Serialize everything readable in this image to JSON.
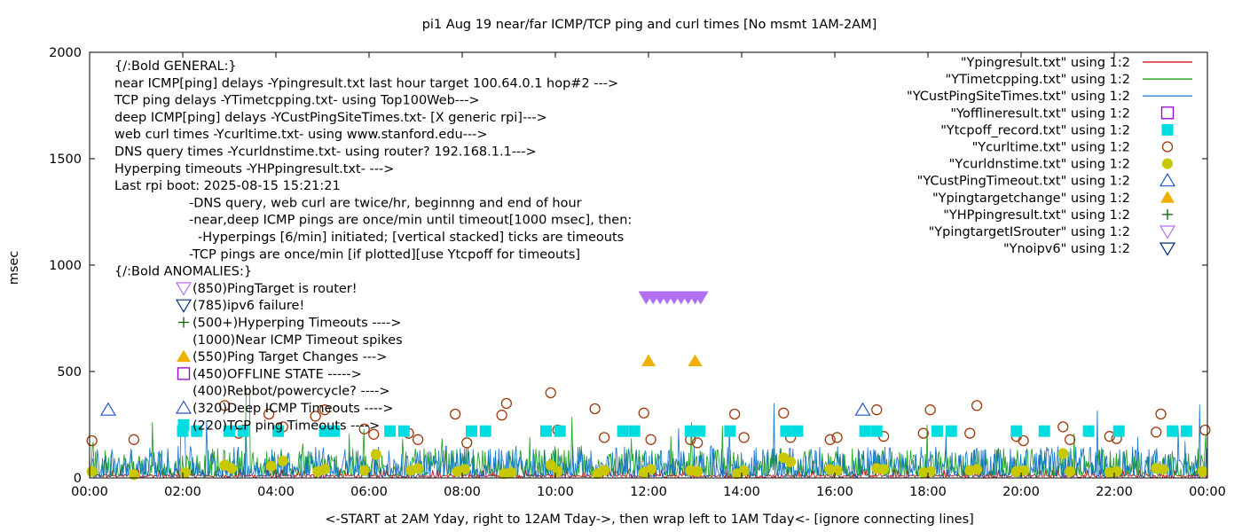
{
  "chart_data": {
    "type": "scatter",
    "title": "pi1 Aug 19  near/far ICMP/TCP ping and curl times [No msmt 1AM-2AM]",
    "xlabel": "<-START at 2AM Yday, right to 12AM Tday->, then wrap left to 1AM Tday<- [ignore connecting lines]",
    "ylabel": "msec",
    "xlim": [
      0,
      24
    ],
    "ylim": [
      0,
      2000
    ],
    "x_ticks": [
      "00:00",
      "02:00",
      "04:00",
      "06:00",
      "08:00",
      "10:00",
      "12:00",
      "14:00",
      "16:00",
      "18:00",
      "20:00",
      "22:00",
      "00:00"
    ],
    "y_ticks": [
      "0",
      "500",
      "1000",
      "1500",
      "2000"
    ],
    "grid": false,
    "legend_position": "top-right",
    "legend": [
      {
        "label": "\"Ypingresult.txt\" using 1:2",
        "marker": "line",
        "color": "#cc0000"
      },
      {
        "label": "\"YTimetcpping.txt\" using 1:2",
        "marker": "line",
        "color": "#009900"
      },
      {
        "label": "\"YCustPingSiteTimes.txt\" using 1:2",
        "marker": "line",
        "color": "#0066cc"
      },
      {
        "label": "\"Yofflineresult.txt\" using 1:2",
        "marker": "open-square",
        "color": "#9400d3"
      },
      {
        "label": "\"Ytcpoff_record.txt\" using 1:2",
        "marker": "filled-square",
        "color": "#00dde0"
      },
      {
        "label": "\"Ycurltime.txt\" using 1:2",
        "marker": "open-circle",
        "color": "#a0380a"
      },
      {
        "label": "\"Ycurldnstime.txt\" using 1:2",
        "marker": "filled-circle",
        "color": "#c8c800"
      },
      {
        "label": "\"YCustPingTimeout.txt\" using 1:2",
        "marker": "open-triangle-up",
        "color": "#2255cc"
      },
      {
        "label": "\"Ypingtargetchange\" using 1:2",
        "marker": "filled-triangle-up",
        "color": "#f0b000"
      },
      {
        "label": "\"YHPpingresult.txt\" using 1:2",
        "marker": "plus",
        "color": "#006400"
      },
      {
        "label": "\"YpingtargetISrouter\" using 1:2",
        "marker": "open-triangle-down",
        "color": "#b070f0"
      },
      {
        "label": "\"Ynoipv6\" using 1:2",
        "marker": "open-triangle-down",
        "color": "#003080"
      }
    ],
    "annotations": [
      "{/:Bold GENERAL:}",
      "near ICMP[ping] delays -Ypingresult.txt last hour target 100.64.0.1 hop#2 --->",
      "TCP ping delays -YTimetcpping.txt- using Top100Web--->",
      "deep ICMP[ping] delays -YCustPingSiteTimes.txt- [X generic rpi]--->",
      "web curl times -Ycurltime.txt- using www.stanford.edu--->",
      "DNS query times -Ycurldnstime.txt- using router? 192.168.1.1--->",
      "Hyperping timeouts -YHPpingresult.txt- --->",
      "Last rpi boot: 2025-08-15 15:21:21",
      "-DNS query, web curl are twice/hr, beginnng and end of hour",
      "-near,deep ICMP pings are once/min until timeout[1000 msec], then:",
      "-Hyperpings [6/min] initiated; [vertical stacked] ticks are timeouts",
      "-TCP pings are once/min [if plotted][use Ytcpoff for timeouts]",
      "{/:Bold ANOMALIES:}",
      "(850)PingTarget is router!",
      "(785)ipv6 failure!",
      "(500+)Hyperping Timeouts ---->",
      "(1000)Near ICMP Timeout spikes",
      "(550)Ping Target Changes --->",
      "(450)OFFLINE STATE ----->",
      "(400)Rebbot/powercycle? ---->",
      "(320)Deep ICMP Timeouts ---->",
      "(220)TCP ping Timeouts ---->"
    ],
    "series": [
      {
        "name": "\"Ycurltime.txt\" using 1:2",
        "marker": "open-circle",
        "points": [
          [
            0.05,
            175
          ],
          [
            0.95,
            180
          ],
          [
            2.9,
            340
          ],
          [
            3.2,
            210
          ],
          [
            3.3,
            225
          ],
          [
            3.85,
            300
          ],
          [
            4.15,
            240
          ],
          [
            4.85,
            290
          ],
          [
            5.05,
            320
          ],
          [
            5.9,
            230
          ],
          [
            6.1,
            205
          ],
          [
            6.85,
            210
          ],
          [
            7.05,
            180
          ],
          [
            7.85,
            300
          ],
          [
            8.1,
            165
          ],
          [
            8.85,
            295
          ],
          [
            8.95,
            350
          ],
          [
            9.9,
            400
          ],
          [
            10.05,
            225
          ],
          [
            10.85,
            325
          ],
          [
            11.05,
            190
          ],
          [
            11.9,
            305
          ],
          [
            12.05,
            180
          ],
          [
            12.9,
            180
          ],
          [
            13.05,
            165
          ],
          [
            13.85,
            300
          ],
          [
            14.05,
            190
          ],
          [
            14.9,
            305
          ],
          [
            15.05,
            190
          ],
          [
            15.9,
            180
          ],
          [
            16.05,
            190
          ],
          [
            16.9,
            320
          ],
          [
            17.05,
            195
          ],
          [
            17.9,
            210
          ],
          [
            18.05,
            320
          ],
          [
            18.9,
            210
          ],
          [
            19.05,
            340
          ],
          [
            19.9,
            195
          ],
          [
            20.05,
            175
          ],
          [
            20.9,
            240
          ],
          [
            21.05,
            180
          ],
          [
            21.9,
            195
          ],
          [
            22.05,
            185
          ],
          [
            22.9,
            215
          ],
          [
            23.0,
            300
          ],
          [
            23.95,
            225
          ]
        ]
      },
      {
        "name": "\"Ycurldnstime.txt\" using 1:2",
        "marker": "filled-circle",
        "points": [
          [
            0.05,
            30
          ],
          [
            0.95,
            15
          ],
          [
            2.05,
            25
          ],
          [
            2.9,
            60
          ],
          [
            3.05,
            45
          ],
          [
            3.9,
            55
          ],
          [
            4.15,
            80
          ],
          [
            4.9,
            30
          ],
          [
            5.05,
            40
          ],
          [
            5.9,
            35
          ],
          [
            6.15,
            110
          ],
          [
            6.9,
            35
          ],
          [
            7.05,
            45
          ],
          [
            7.9,
            30
          ],
          [
            8.05,
            40
          ],
          [
            8.9,
            20
          ],
          [
            9.05,
            25
          ],
          [
            9.9,
            60
          ],
          [
            10.05,
            30
          ],
          [
            10.9,
            20
          ],
          [
            11.05,
            35
          ],
          [
            11.9,
            25
          ],
          [
            12.05,
            40
          ],
          [
            12.9,
            35
          ],
          [
            13.05,
            30
          ],
          [
            13.9,
            20
          ],
          [
            14.05,
            35
          ],
          [
            14.9,
            95
          ],
          [
            15.05,
            75
          ],
          [
            15.9,
            40
          ],
          [
            16.05,
            35
          ],
          [
            16.9,
            45
          ],
          [
            17.05,
            40
          ],
          [
            17.9,
            25
          ],
          [
            18.05,
            30
          ],
          [
            18.9,
            35
          ],
          [
            19.05,
            40
          ],
          [
            19.9,
            30
          ],
          [
            20.05,
            35
          ],
          [
            20.9,
            115
          ],
          [
            21.05,
            30
          ],
          [
            21.9,
            25
          ],
          [
            22.05,
            30
          ],
          [
            22.9,
            45
          ],
          [
            23.05,
            40
          ],
          [
            23.9,
            30
          ]
        ]
      },
      {
        "name": "\"Ytcpoff_record.txt\" using 1:2",
        "marker": "filled-square",
        "points": [
          [
            2.0,
            220
          ],
          [
            2.3,
            220
          ],
          [
            3.0,
            220
          ],
          [
            3.3,
            220
          ],
          [
            4.05,
            220
          ],
          [
            5.05,
            220
          ],
          [
            5.25,
            220
          ],
          [
            6.45,
            220
          ],
          [
            6.75,
            220
          ],
          [
            8.2,
            220
          ],
          [
            8.5,
            220
          ],
          [
            9.8,
            220
          ],
          [
            10.1,
            220
          ],
          [
            11.45,
            220
          ],
          [
            11.7,
            220
          ],
          [
            12.9,
            220
          ],
          [
            13.1,
            220
          ],
          [
            13.75,
            220
          ],
          [
            14.95,
            220
          ],
          [
            15.2,
            220
          ],
          [
            16.65,
            220
          ],
          [
            16.9,
            220
          ],
          [
            18.2,
            220
          ],
          [
            18.5,
            220
          ],
          [
            19.9,
            220
          ],
          [
            20.5,
            220
          ],
          [
            21.45,
            220
          ],
          [
            22.1,
            220
          ],
          [
            23.25,
            220
          ],
          [
            23.55,
            220
          ]
        ]
      },
      {
        "name": "\"YCustPingTimeout.txt\" using 1:2",
        "marker": "open-triangle-up",
        "points": [
          [
            0.4,
            320
          ],
          [
            16.6,
            320
          ]
        ]
      },
      {
        "name": "\"Ypingtargetchange\" using 1:2",
        "marker": "filled-triangle-up",
        "points": [
          [
            12.0,
            550
          ],
          [
            13.0,
            550
          ]
        ]
      },
      {
        "name": "\"YpingtargetISrouter\" using 1:2",
        "marker": "open-triangle-down",
        "points": [
          [
            11.95,
            850
          ],
          [
            12.1,
            850
          ],
          [
            12.25,
            850
          ],
          [
            12.4,
            850
          ],
          [
            12.55,
            850
          ],
          [
            12.7,
            850
          ],
          [
            12.85,
            850
          ],
          [
            13.0,
            850
          ],
          [
            13.12,
            850
          ]
        ]
      }
    ],
    "line_series": [
      {
        "name": "\"Ypingresult.txt\" using 1:2",
        "typical": [
          2,
          25
        ],
        "color": "#cc0000"
      },
      {
        "name": "\"YTimetcpping.txt\" using 1:2",
        "typical": [
          10,
          140
        ],
        "color": "#009900"
      },
      {
        "name": "\"YCustPingSiteTimes.txt\" using 1:2",
        "typical": [
          5,
          150
        ],
        "color": "#0066cc"
      }
    ]
  }
}
